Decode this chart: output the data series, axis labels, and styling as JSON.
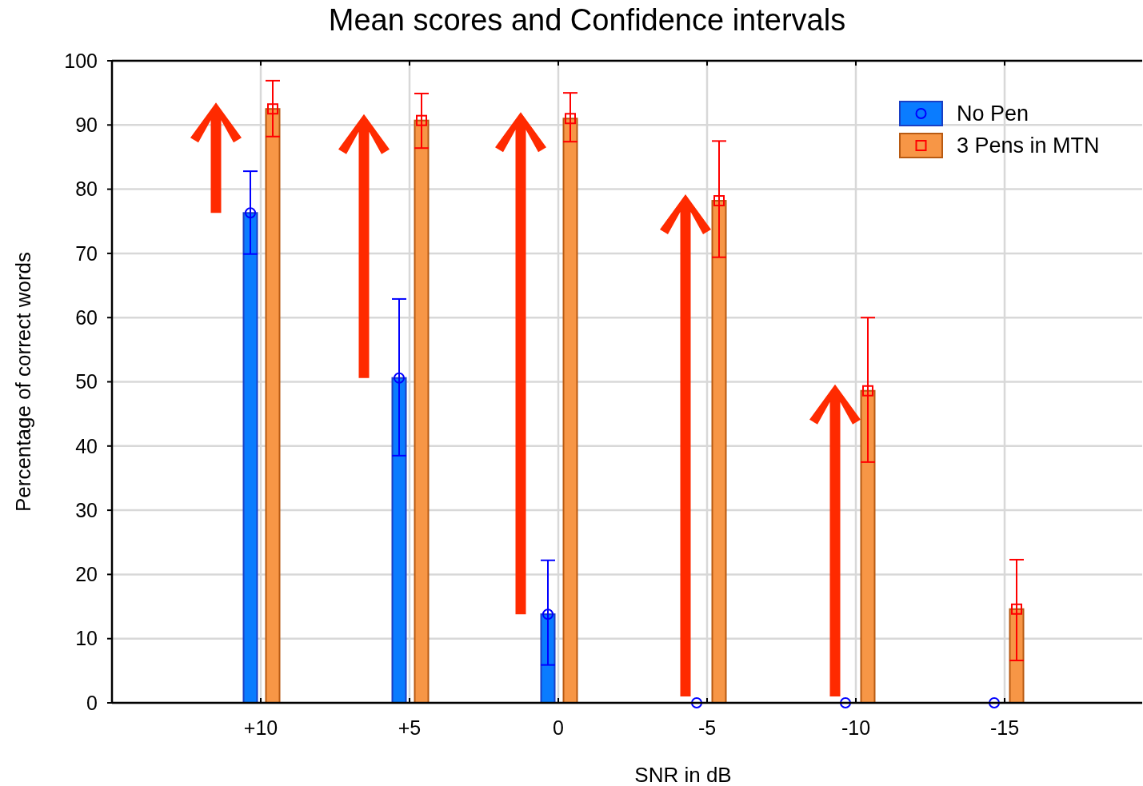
{
  "chart_data": {
    "type": "bar",
    "title": "Mean scores and Confidence intervals",
    "xlabel": "SNR in dB",
    "ylabel": "Percentage of correct words",
    "categories": [
      "+10",
      "+5",
      "0",
      "-5",
      "-10",
      "-15"
    ],
    "series": [
      {
        "name": "No Pen",
        "color": "#0a7cff",
        "values": [
          76.3,
          50.6,
          13.8,
          0,
          0,
          0
        ],
        "errors": [
          [
            69.9,
            82.8
          ],
          [
            38.5,
            62.9
          ],
          [
            5.9,
            22.2
          ],
          null,
          null,
          null
        ]
      },
      {
        "name": "3 Pens in MTN",
        "color": "#f79646",
        "values": [
          92.5,
          90.7,
          91.0,
          78.2,
          48.6,
          14.6
        ],
        "errors": [
          [
            88.2,
            96.9
          ],
          [
            86.4,
            94.9
          ],
          [
            87.4,
            95.0
          ],
          [
            69.4,
            87.5
          ],
          [
            37.5,
            60.0
          ],
          [
            6.6,
            22.3
          ]
        ]
      },
      {
        "type": "scatter",
        "color": "#0000ff",
        "marker": "circle",
        "x": [
          "+10",
          "+5",
          "0",
          "-5",
          "-10",
          "-15"
        ],
        "values": [
          76.3,
          50.6,
          13.8,
          0,
          0,
          0
        ]
      },
      {
        "type": "scatter",
        "color": "#ff0000",
        "marker": "square",
        "x": [
          "+10",
          "+5",
          "0",
          "-5",
          "-10",
          "-15"
        ],
        "values": [
          92.5,
          90.7,
          91.0,
          78.2,
          48.6,
          14.6
        ]
      }
    ],
    "ylim": [
      0,
      100
    ],
    "yticks": [
      0,
      10,
      20,
      30,
      40,
      50,
      60,
      70,
      80,
      90,
      100
    ],
    "grid": true,
    "legend": "top right"
  }
}
